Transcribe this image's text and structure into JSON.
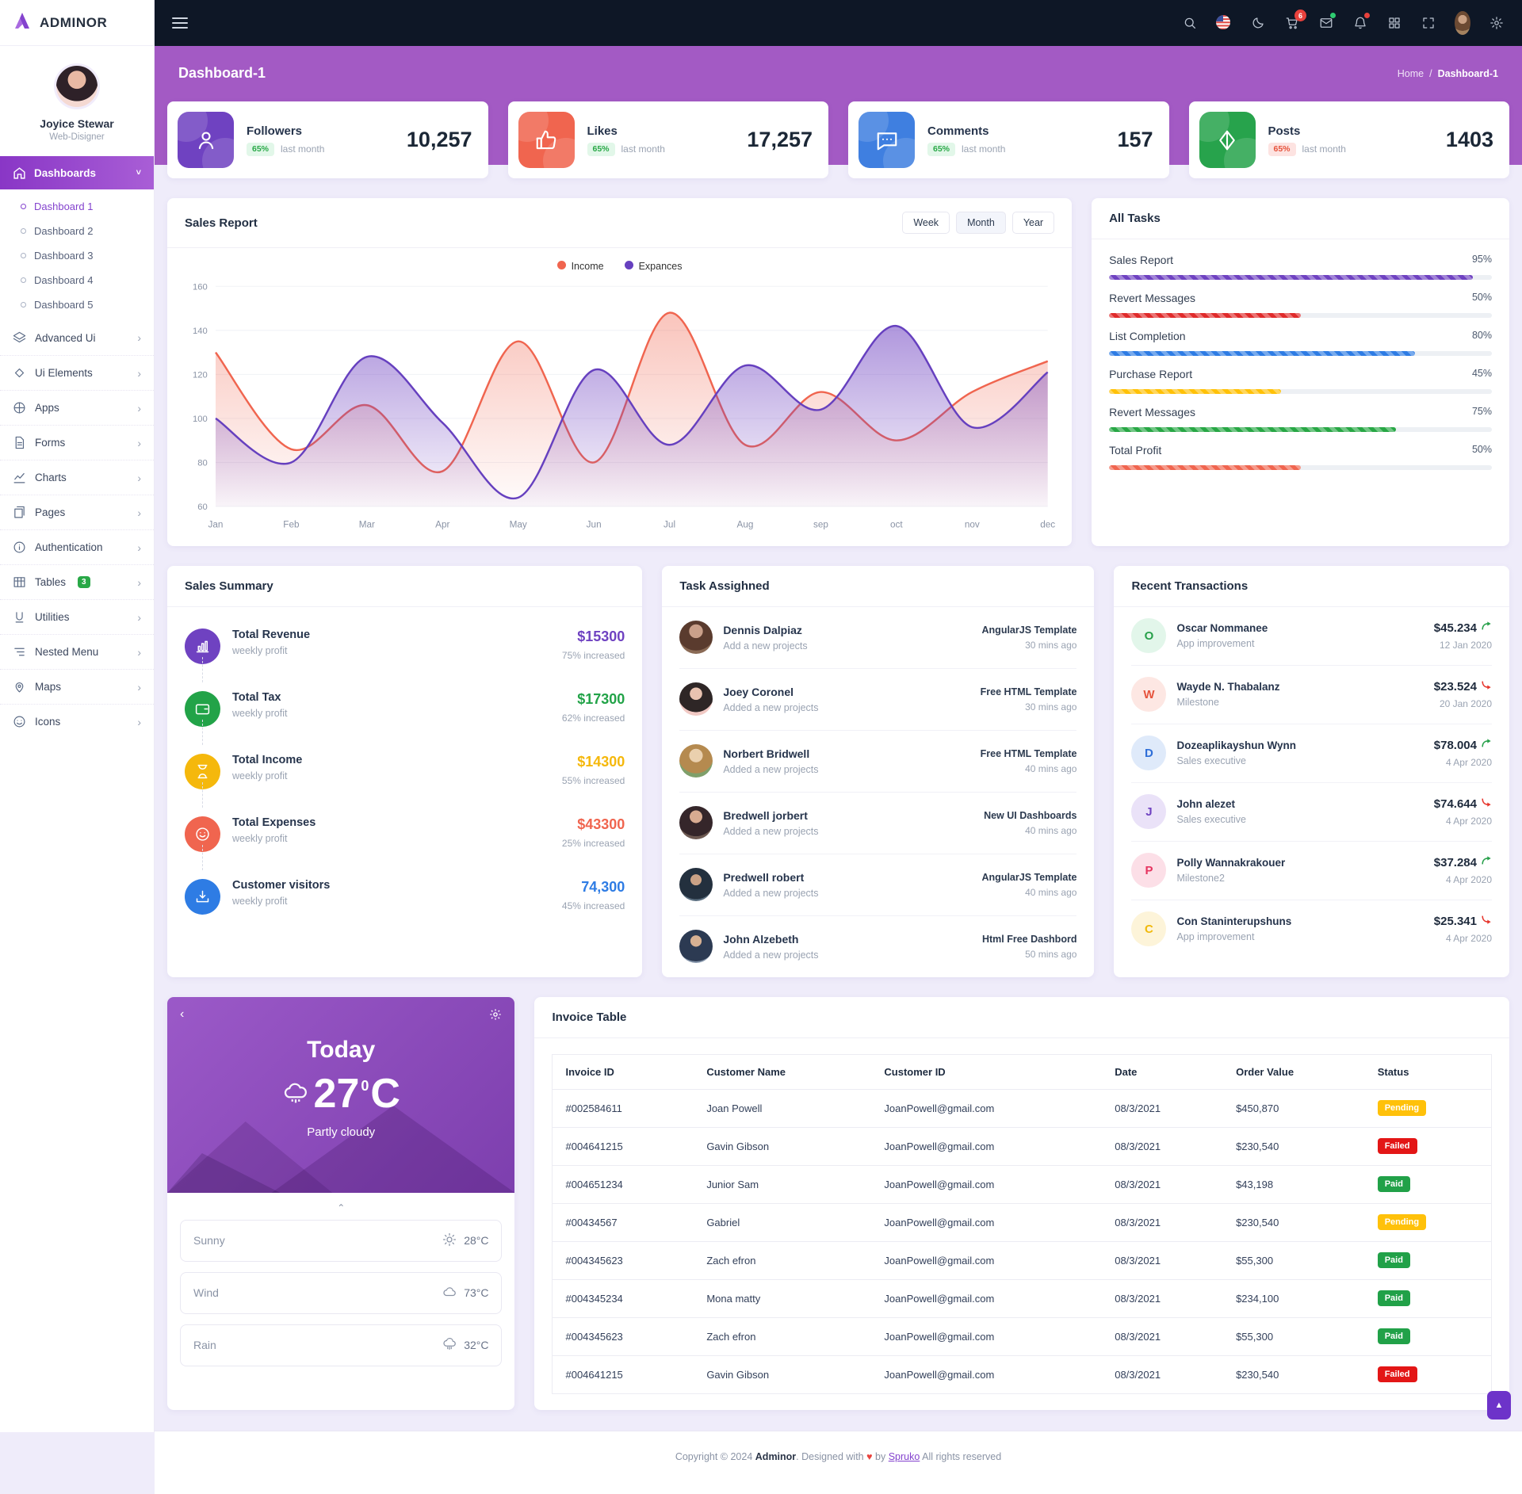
{
  "brand": {
    "name": "ADMINOR"
  },
  "user": {
    "name": "Joyice Stewar",
    "role": "Web-Disigner"
  },
  "topbar": {
    "cart_badge": "6",
    "icons": [
      "search-icon",
      "us-flag-icon",
      "moon-icon",
      "cart-icon",
      "mail-icon",
      "bell-icon",
      "grid-icon",
      "fullscreen-icon",
      "avatar",
      "gear-icon"
    ]
  },
  "sidebar": {
    "dashboards": {
      "label": "Dashboards",
      "children": [
        "Dashboard 1",
        "Dashboard 2",
        "Dashboard 3",
        "Dashboard 4",
        "Dashboard 5"
      ],
      "active_child": "Dashboard 1"
    },
    "items": [
      {
        "label": "Advanced Ui",
        "icon": "layers"
      },
      {
        "label": "Ui Elements",
        "icon": "diamond"
      },
      {
        "label": "Apps",
        "icon": "apps"
      },
      {
        "label": "Forms",
        "icon": "file"
      },
      {
        "label": "Charts",
        "icon": "chart"
      },
      {
        "label": "Pages",
        "icon": "pages"
      },
      {
        "label": "Authentication",
        "icon": "info"
      },
      {
        "label": "Tables",
        "icon": "table",
        "badge": "3"
      },
      {
        "label": "Utilities",
        "icon": "utilities"
      },
      {
        "label": "Nested Menu",
        "icon": "nested"
      },
      {
        "label": "Maps",
        "icon": "map"
      },
      {
        "label": "Icons",
        "icon": "smile"
      }
    ]
  },
  "header": {
    "title": "Dashboard-1",
    "breadcrumb_home": "Home",
    "breadcrumb_sep": "/",
    "breadcrumb_current": "Dashboard-1"
  },
  "stats": [
    {
      "label": "Followers",
      "badge": "65%",
      "badge_tone": "green",
      "caption": "last month",
      "value": "10,257",
      "color": "#6f42c1",
      "icon": "person"
    },
    {
      "label": "Likes",
      "badge": "65%",
      "badge_tone": "green",
      "caption": "last month",
      "value": "17,257",
      "color": "#f0654f",
      "icon": "thumb"
    },
    {
      "label": "Comments",
      "badge": "65%",
      "badge_tone": "green",
      "caption": "last month",
      "value": "157",
      "color": "#3f7fe0",
      "icon": "chat"
    },
    {
      "label": "Posts",
      "badge": "65%",
      "badge_tone": "red",
      "caption": "last month",
      "value": "1403",
      "color": "#27a34c",
      "icon": "kite"
    }
  ],
  "sales_card": {
    "title": "Sales Report",
    "range_buttons": [
      "Week",
      "Month",
      "Year"
    ],
    "active_range": "Month"
  },
  "chart_data": {
    "type": "area",
    "title": "Sales Report",
    "categories": [
      "Jan",
      "Feb",
      "Mar",
      "Apr",
      "May",
      "Jun",
      "Jul",
      "Aug",
      "sep",
      "oct",
      "nov",
      "dec"
    ],
    "series": [
      {
        "name": "Income",
        "color": "#f0654f",
        "values": [
          130,
          86,
          106,
          76,
          135,
          80,
          148,
          88,
          112,
          90,
          112,
          126
        ]
      },
      {
        "name": "Expances",
        "color": "#6640bf",
        "values": [
          100,
          80,
          128,
          98,
          64,
          122,
          88,
          124,
          104,
          142,
          96,
          121
        ]
      }
    ],
    "ylim": [
      60,
      160
    ],
    "ytick_step": 20,
    "grid": true,
    "legend_position": "top-center"
  },
  "all_tasks": {
    "title": "All Tasks",
    "items": [
      {
        "label": "Sales Report",
        "percent": 95,
        "color": "#6f42c1"
      },
      {
        "label": "Revert Messages",
        "percent": 50,
        "color": "#e02b2b"
      },
      {
        "label": "List Completion",
        "percent": 80,
        "color": "#2e7ce4"
      },
      {
        "label": "Purchase Report",
        "percent": 45,
        "color": "#ffc107"
      },
      {
        "label": "Revert Messages",
        "percent": 75,
        "color": "#28a745"
      },
      {
        "label": "Total Profit",
        "percent": 50,
        "color": "#f0654f"
      }
    ]
  },
  "sales_summary": {
    "title": "Sales Summary",
    "items": [
      {
        "label": "Total Revenue",
        "caption": "weekly profit",
        "value": "$15300",
        "delta": "75% increased",
        "color": "#6f42c1",
        "icon": "bars"
      },
      {
        "label": "Total Tax",
        "caption": "weekly profit",
        "value": "$17300",
        "delta": "62% increased",
        "color": "#22a348",
        "icon": "wallet"
      },
      {
        "label": "Total Income",
        "caption": "weekly profit",
        "value": "$14300",
        "delta": "55% increased",
        "color": "#f5b80c",
        "icon": "hourglass"
      },
      {
        "label": "Total Expenses",
        "caption": "weekly profit",
        "value": "$43300",
        "delta": "25% increased",
        "color": "#f0654f",
        "icon": "smileface"
      },
      {
        "label": "Customer visitors",
        "caption": "weekly profit",
        "value": "74,300",
        "delta": "45% increased",
        "color": "#2e7ce4",
        "icon": "download"
      }
    ]
  },
  "task_assigned": {
    "title": "Task Assighned",
    "items": [
      {
        "name": "Dennis Dalpiaz",
        "action": "Add a new projects",
        "project": "AngularJS Template",
        "time": "30 mins ago"
      },
      {
        "name": "Joey Coronel",
        "action": "Added a new projects",
        "project": "Free HTML Template",
        "time": "30 mins ago"
      },
      {
        "name": "Norbert Bridwell",
        "action": "Added a new projects",
        "project": "Free HTML Template",
        "time": "40 mins ago"
      },
      {
        "name": "Bredwell jorbert",
        "action": "Added a new projects",
        "project": "New UI Dashboards",
        "time": "40 mins ago"
      },
      {
        "name": "Predwell robert",
        "action": "Added a new projects",
        "project": "AngularJS Template",
        "time": "40 mins ago"
      },
      {
        "name": "John Alzebeth",
        "action": "Added a new projects",
        "project": "Html Free Dashbord",
        "time": "50 mins ago"
      }
    ]
  },
  "transactions": {
    "title": "Recent Transactions",
    "items": [
      {
        "initial": "O",
        "name": "Oscar Nommanee",
        "role": "App improvement",
        "amount": "$45.234",
        "direction": "up",
        "date": "12 Jan 2020",
        "fg": "#27a04a",
        "bg": "#e2f6ea"
      },
      {
        "initial": "W",
        "name": "Wayde N. Thabalanz",
        "role": "Milestone",
        "amount": "$23.524",
        "direction": "down",
        "date": "20 Jan 2020",
        "fg": "#e6533c",
        "bg": "#fde7e3"
      },
      {
        "initial": "D",
        "name": "Dozeaplikayshun Wynn",
        "role": "Sales executive",
        "amount": "$78.004",
        "direction": "up",
        "date": "4 Apr 2020",
        "fg": "#2f6fd8",
        "bg": "#dfeafa"
      },
      {
        "initial": "J",
        "name": "John alezet",
        "role": "Sales executive",
        "amount": "$74.644",
        "direction": "down",
        "date": "4 Apr 2020",
        "fg": "#6f42c1",
        "bg": "#eae2f8"
      },
      {
        "initial": "P",
        "name": "Polly Wannakrakouer",
        "role": "Milestone2",
        "amount": "$37.284",
        "direction": "up",
        "date": "4 Apr 2020",
        "fg": "#e6335f",
        "bg": "#fcdfe7"
      },
      {
        "initial": "C",
        "name": "Con Staninterupshuns",
        "role": "App improvement",
        "amount": "$25.341",
        "direction": "down",
        "date": "4 Apr 2020",
        "fg": "#f1b90c",
        "bg": "#fdf4d9"
      }
    ]
  },
  "weather": {
    "day": "Today",
    "temp": "27",
    "degree": "0",
    "unit": "C",
    "condition": "Partly cloudy",
    "details": [
      {
        "label": "Sunny",
        "value": "28°C",
        "icon": "sun"
      },
      {
        "label": "Wind",
        "value": "73°C",
        "icon": "cloud"
      },
      {
        "label": "Rain",
        "value": "32°C",
        "icon": "rain"
      }
    ]
  },
  "invoice": {
    "title": "Invoice Table",
    "columns": [
      "Invoice ID",
      "Customer Name",
      "Customer ID",
      "Date",
      "Order Value",
      "Status"
    ],
    "status_colors": {
      "Pending": "#ffc10a",
      "Failed": "#e31616",
      "Paid": "#21a148"
    },
    "rows": [
      {
        "id": "#002584611",
        "name": "Joan Powell",
        "email": "JoanPowell@gmail.com",
        "date": "08/3/2021",
        "value": "$450,870",
        "status": "Pending"
      },
      {
        "id": "#004641215",
        "name": "Gavin Gibson",
        "email": "JoanPowell@gmail.com",
        "date": "08/3/2021",
        "value": "$230,540",
        "status": "Failed"
      },
      {
        "id": "#004651234",
        "name": "Junior Sam",
        "email": "JoanPowell@gmail.com",
        "date": "08/3/2021",
        "value": "$43,198",
        "status": "Paid"
      },
      {
        "id": "#00434567",
        "name": "Gabriel",
        "email": "JoanPowell@gmail.com",
        "date": "08/3/2021",
        "value": "$230,540",
        "status": "Pending"
      },
      {
        "id": "#004345623",
        "name": "Zach efron",
        "email": "JoanPowell@gmail.com",
        "date": "08/3/2021",
        "value": "$55,300",
        "status": "Paid"
      },
      {
        "id": "#004345234",
        "name": "Mona matty",
        "email": "JoanPowell@gmail.com",
        "date": "08/3/2021",
        "value": "$234,100",
        "status": "Paid"
      },
      {
        "id": "#004345623",
        "name": "Zach efron",
        "email": "JoanPowell@gmail.com",
        "date": "08/3/2021",
        "value": "$55,300",
        "status": "Paid"
      },
      {
        "id": "#004641215",
        "name": "Gavin Gibson",
        "email": "JoanPowell@gmail.com",
        "date": "08/3/2021",
        "value": "$230,540",
        "status": "Failed"
      }
    ]
  },
  "footer": {
    "prefix": "Copyright © 2024",
    "brand": "Adminor",
    "middle": ". Designed with",
    "heart": "♥",
    "by": "by",
    "link": "Spruko",
    "suffix": "All rights reserved"
  }
}
